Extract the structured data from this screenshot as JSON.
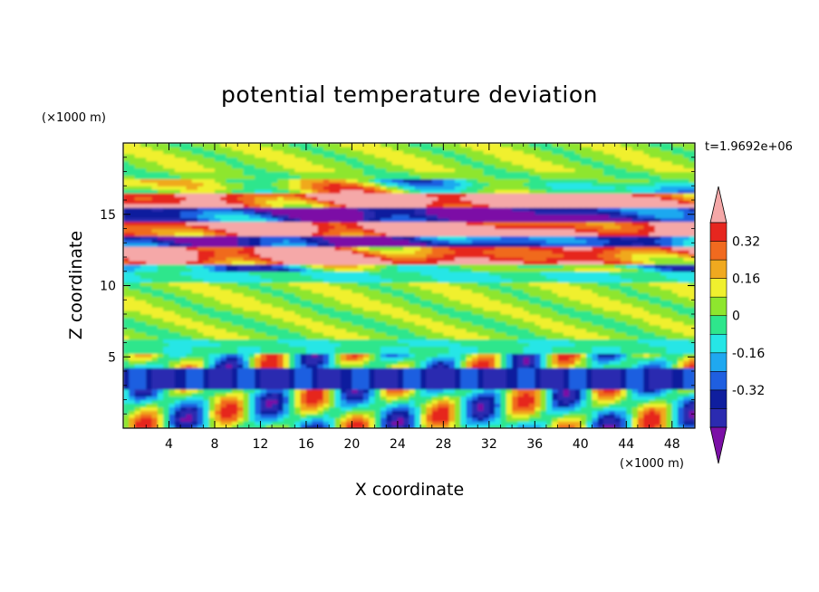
{
  "chart_data": {
    "type": "heatmap",
    "title": "potential temperature deviation",
    "xlabel": "X coordinate",
    "ylabel": "Z coordinate",
    "x_unit": "(×1000 m)",
    "y_unit": "(×1000 m)",
    "time_label": "t=1.9692e+06",
    "xlim": [
      0,
      50
    ],
    "ylim": [
      0,
      20
    ],
    "x_ticks": [
      4,
      8,
      12,
      16,
      20,
      24,
      28,
      32,
      36,
      40,
      44,
      48
    ],
    "y_ticks": [
      5,
      10,
      15
    ],
    "colorbar": {
      "levels": [
        -0.48,
        -0.4,
        -0.32,
        -0.24,
        -0.16,
        -0.08,
        0,
        0.08,
        0.16,
        0.24,
        0.32,
        0.4
      ],
      "colors": [
        "#7b0fa6",
        "#2b2bb0",
        "#0f1e9e",
        "#1f5fe0",
        "#1fa8f0",
        "#26e6e6",
        "#2ee68c",
        "#8ee62e",
        "#f0f02e",
        "#f0a91f",
        "#f06a1f",
        "#e6261f",
        "#f5a8a8"
      ],
      "tick_labels": [
        "0.32",
        "0.16",
        "0",
        "-0.16",
        "-0.32"
      ],
      "tick_values": [
        0.32,
        0.16,
        0,
        -0.16,
        -0.32
      ]
    },
    "bands": [
      {
        "z": 19,
        "value": 0.05
      },
      {
        "z": 17.2,
        "value": 0.02
      },
      {
        "z": 16.0,
        "value": 0.44
      },
      {
        "z": 15.0,
        "value": -0.44
      },
      {
        "z": 14.0,
        "value": 0.44
      },
      {
        "z": 13.2,
        "value": -0.36
      },
      {
        "z": 12.2,
        "value": 0.38
      },
      {
        "z": 11.0,
        "value": -0.1
      },
      {
        "z": 9.5,
        "value": 0.05
      },
      {
        "z": 7.0,
        "value": 0.04
      },
      {
        "z": 5.5,
        "value": -0.06
      },
      {
        "z": 3.5,
        "value": -0.4
      },
      {
        "z": 1.5,
        "value": 0.3
      }
    ]
  }
}
